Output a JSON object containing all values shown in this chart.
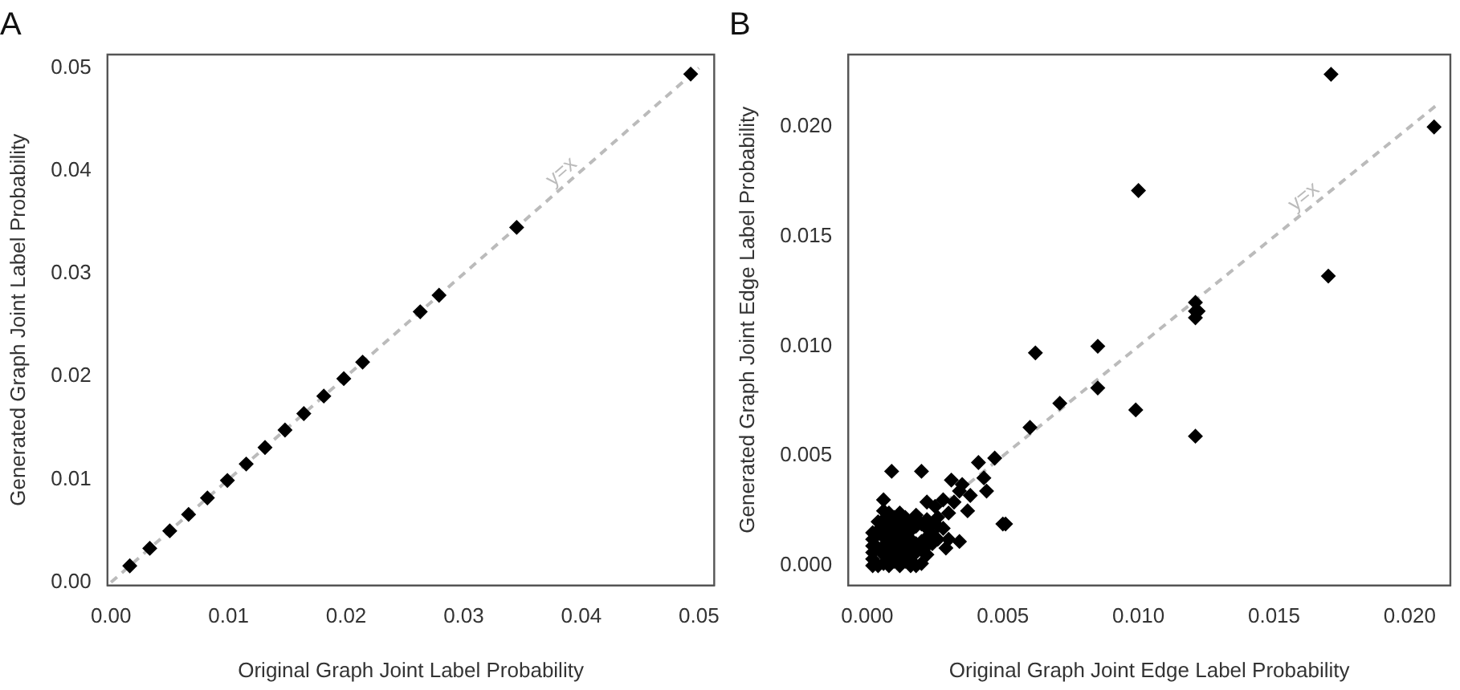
{
  "chart_data": [
    {
      "type": "scatter",
      "title": "A",
      "xlabel": "Original Graph Joint Label Probability",
      "ylabel": "Generated Graph Joint Label Probability",
      "xlim": [
        -0.0003,
        0.0513
      ],
      "ylim": [
        -0.0003,
        0.0513
      ],
      "xticks": [
        {
          "value": 0,
          "label": "0.00"
        },
        {
          "value": 0.01,
          "label": "0.01"
        },
        {
          "value": 0.02,
          "label": "0.02"
        },
        {
          "value": 0.03,
          "label": "0.03"
        },
        {
          "value": 0.04,
          "label": "0.04"
        },
        {
          "value": 0.05,
          "label": "0.05"
        }
      ],
      "yticks": [
        {
          "value": 0,
          "label": "0.00"
        },
        {
          "value": 0.01,
          "label": "0.01"
        },
        {
          "value": 0.02,
          "label": "0.02"
        },
        {
          "value": 0.03,
          "label": "0.03"
        },
        {
          "value": 0.04,
          "label": "0.04"
        },
        {
          "value": 0.05,
          "label": "0.05"
        }
      ],
      "grid": false,
      "legend": false,
      "series": [
        {
          "type": "scatter",
          "color": "#000000",
          "marker": "diamond",
          "x": [
            0.0016,
            0.0033,
            0.005,
            0.0066,
            0.0082,
            0.0099,
            0.0115,
            0.0131,
            0.0148,
            0.0164,
            0.0181,
            0.0198,
            0.0214,
            0.0263,
            0.0279,
            0.0345,
            0.0493
          ],
          "values": [
            0.0016,
            0.0033,
            0.005,
            0.0066,
            0.0082,
            0.0099,
            0.0115,
            0.0131,
            0.0148,
            0.0164,
            0.0181,
            0.0198,
            0.0214,
            0.0263,
            0.0279,
            0.0345,
            0.0494
          ]
        },
        {
          "type": "line",
          "name": "y=x",
          "color": "#bbbbbb",
          "line_style": "dashed",
          "marker": "none",
          "x": [
            0,
            0.05
          ],
          "values": [
            0,
            0.05
          ]
        }
      ]
    },
    {
      "type": "scatter",
      "title": "B",
      "xlabel": "Original Graph Joint Edge Label Probability",
      "ylabel": "Generated Graph Joint Edge Label Probability",
      "xlim": [
        -0.0007,
        0.0215
      ],
      "ylim": [
        -0.0009,
        0.0233
      ],
      "xticks": [
        {
          "value": 0,
          "label": "0.000"
        },
        {
          "value": 0.005,
          "label": "0.005"
        },
        {
          "value": 0.01,
          "label": "0.010"
        },
        {
          "value": 0.015,
          "label": "0.015"
        },
        {
          "value": 0.02,
          "label": "0.020"
        }
      ],
      "yticks": [
        {
          "value": 0,
          "label": "0.000"
        },
        {
          "value": 0.005,
          "label": "0.005"
        },
        {
          "value": 0.01,
          "label": "0.010"
        },
        {
          "value": 0.015,
          "label": "0.015"
        },
        {
          "value": 0.02,
          "label": "0.020"
        }
      ],
      "grid": false,
      "legend": false,
      "series": [
        {
          "type": "scatter",
          "color": "#000000",
          "marker": "diamond",
          "x": [
            0.0171,
            0.017,
            0.01,
            0.0121,
            0.0121,
            0.0122,
            0.0121,
            0.0121,
            0.0085,
            0.0085,
            0.0099,
            0.0062,
            0.0071,
            0.006,
            0.0051,
            0.0209,
            0.0009,
            0.002,
            0.0006,
            0.0041,
            0.0047,
            0.0031,
            0.0035,
            0.0043,
            0.0038,
            0.0044,
            0.0034,
            0.0028,
            0.0032,
            0.0037,
            0.003,
            0.005,
            0.0022,
            0.0025,
            0.0028,
            0.003,
            0.0034,
            0.0029,
            0.002,
            0.0018,
            0.0002,
            0.0002,
            0.0002,
            0.0002,
            0.0002,
            0.0002,
            0.0004,
            0.0004,
            0.0004,
            0.0004,
            0.0006,
            0.0006,
            0.0006,
            0.0006,
            0.0006,
            0.0006,
            0.0006,
            0.0008,
            0.0008,
            0.0008,
            0.0008,
            0.0008,
            0.0008,
            0.0008,
            0.001,
            0.001,
            0.001,
            0.001,
            0.001,
            0.001,
            0.0012,
            0.0012,
            0.0012,
            0.0012,
            0.0012,
            0.0012,
            0.0012,
            0.0014,
            0.0014,
            0.0014,
            0.0014,
            0.0014,
            0.0014,
            0.0016,
            0.0016,
            0.0016,
            0.0016,
            0.0016,
            0.0016,
            0.0018,
            0.0018,
            0.0018,
            0.0018,
            0.002,
            0.002,
            0.002,
            0.0022,
            0.0022,
            0.0022,
            0.0022,
            0.0022,
            0.0024,
            0.0024,
            0.0024,
            0.0026,
            0.0026,
            0.0026
          ],
          "values": [
            0.0224,
            0.0132,
            0.0171,
            0.012,
            0.0116,
            0.0116,
            0.0113,
            0.0059,
            0.01,
            0.0081,
            0.0071,
            0.0097,
            0.0074,
            0.0063,
            0.0019,
            0.02,
            0.0043,
            0.0043,
            0.003,
            0.0047,
            0.0049,
            0.0039,
            0.0037,
            0.004,
            0.0032,
            0.0034,
            0.0034,
            0.003,
            0.0029,
            0.0025,
            0.0024,
            0.0019,
            0.0029,
            0.0027,
            0.0017,
            0.0012,
            0.0011,
            0.0008,
            0.0001,
            0.0,
            0.0,
            0.0003,
            0.0006,
            0.0009,
            0.0012,
            0.0015,
            0.0,
            0.0008,
            0.0016,
            0.002,
            0.0001,
            0.0005,
            0.0009,
            0.0013,
            0.0017,
            0.0021,
            0.0025,
            0.0,
            0.0004,
            0.0008,
            0.0012,
            0.0016,
            0.002,
            0.0024,
            0.0002,
            0.0006,
            0.001,
            0.0014,
            0.0018,
            0.0022,
            0.0,
            0.0004,
            0.0008,
            0.0012,
            0.0016,
            0.002,
            0.0024,
            0.0002,
            0.0006,
            0.001,
            0.0014,
            0.0018,
            0.0022,
            0.0,
            0.0004,
            0.0008,
            0.0012,
            0.0016,
            0.002,
            0.0006,
            0.001,
            0.0018,
            0.0023,
            0.0007,
            0.0011,
            0.0019,
            0.0005,
            0.0009,
            0.0013,
            0.0017,
            0.0021,
            0.001,
            0.0014,
            0.0019,
            0.0012,
            0.0018,
            0.0022
          ]
        },
        {
          "type": "line",
          "name": "y=x",
          "color": "#bbbbbb",
          "line_style": "dashed",
          "marker": "none",
          "x": [
            0,
            0.021
          ],
          "values": [
            0,
            0.021
          ]
        }
      ]
    }
  ]
}
